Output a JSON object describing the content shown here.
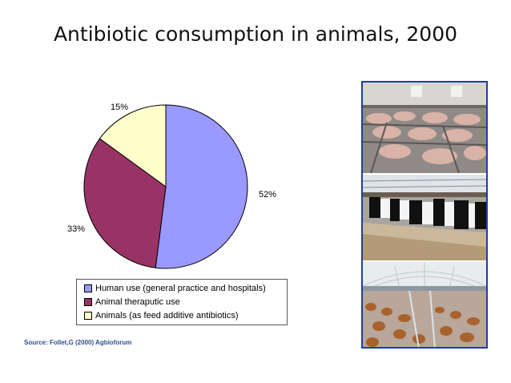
{
  "slide": {
    "title": "Antibiotic consumption in animals, 2000",
    "source": "Source: Follet,G (2000)  Agbioforum"
  },
  "chart_data": {
    "type": "pie",
    "title": "",
    "slices": [
      {
        "label": "Human use (general practice and hospitals)",
        "value": 52,
        "value_label": "52%",
        "color": "#9999ff"
      },
      {
        "label": "Animal theraputic use",
        "value": 33,
        "value_label": "33%",
        "color": "#993366"
      },
      {
        "label": "Animals (as feed additive antibiotics)",
        "value": 15,
        "value_label": "15%",
        "color": "#ffffcc"
      }
    ],
    "legend_placement": "bottom"
  },
  "photos": [
    {
      "subject": "pigs in pens"
    },
    {
      "subject": "dairy cows in barn"
    },
    {
      "subject": "chickens in poultry house"
    }
  ]
}
